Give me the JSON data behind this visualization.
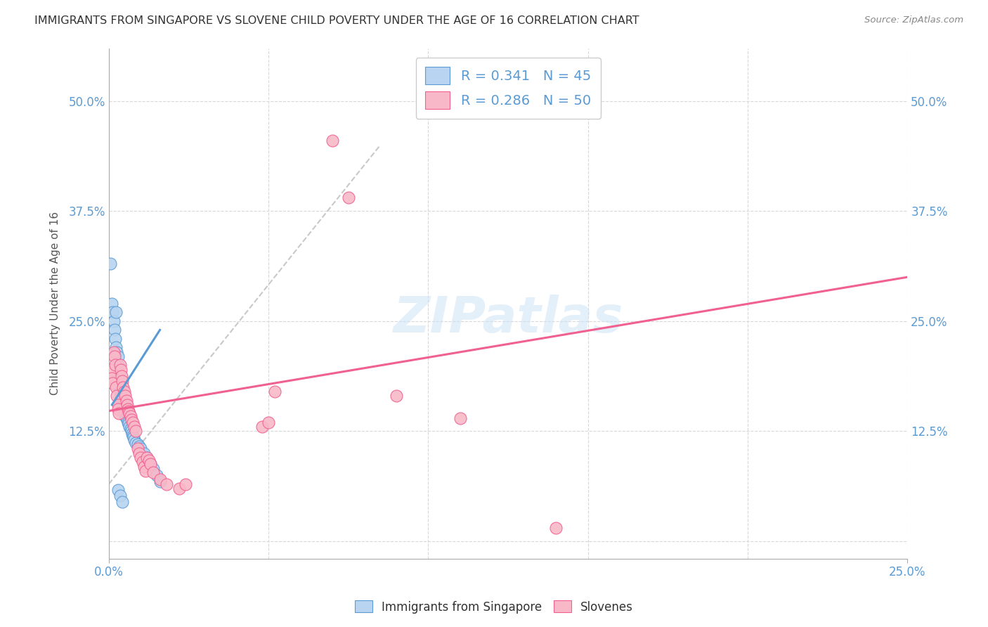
{
  "title": "IMMIGRANTS FROM SINGAPORE VS SLOVENE CHILD POVERTY UNDER THE AGE OF 16 CORRELATION CHART",
  "source": "Source: ZipAtlas.com",
  "ylabel": "Child Poverty Under the Age of 16",
  "xlim": [
    0.0,
    0.25
  ],
  "ylim": [
    -0.02,
    0.56
  ],
  "yticks": [
    0.0,
    0.125,
    0.25,
    0.375,
    0.5
  ],
  "ytick_labels_left": [
    "",
    "12.5%",
    "25.0%",
    "37.5%",
    "50.0%"
  ],
  "ytick_labels_right": [
    "",
    "12.5%",
    "25.0%",
    "37.5%",
    "50.0%"
  ],
  "xticks": [
    0.0,
    0.25
  ],
  "xtick_labels": [
    "0.0%",
    "25.0%"
  ],
  "legend_r1": "R = 0.341   N = 45",
  "legend_r2": "R = 0.286   N = 50",
  "color_blue_fill": "#b8d4f0",
  "color_pink_fill": "#f8b8c8",
  "color_blue_edge": "#5b9bd5",
  "color_pink_edge": "#f06090",
  "color_pink_line": "#f06090",
  "color_blue_line": "#5b9bd5",
  "color_gray_dashed": "#bbbbbb",
  "background_color": "#ffffff",
  "watermark_text": "ZIPatlas",
  "singapore_points": [
    [
      0.0005,
      0.315
    ],
    [
      0.001,
      0.27
    ],
    [
      0.0012,
      0.26
    ],
    [
      0.0015,
      0.25
    ],
    [
      0.0018,
      0.24
    ],
    [
      0.002,
      0.23
    ],
    [
      0.0022,
      0.22
    ],
    [
      0.0022,
      0.26
    ],
    [
      0.0025,
      0.215
    ],
    [
      0.0028,
      0.21
    ],
    [
      0.003,
      0.2
    ],
    [
      0.003,
      0.185
    ],
    [
      0.0032,
      0.175
    ],
    [
      0.0035,
      0.17
    ],
    [
      0.0038,
      0.165
    ],
    [
      0.004,
      0.16
    ],
    [
      0.0042,
      0.155
    ],
    [
      0.0045,
      0.15
    ],
    [
      0.0048,
      0.148
    ],
    [
      0.005,
      0.145
    ],
    [
      0.0052,
      0.142
    ],
    [
      0.0055,
      0.14
    ],
    [
      0.0058,
      0.138
    ],
    [
      0.006,
      0.135
    ],
    [
      0.0062,
      0.133
    ],
    [
      0.0065,
      0.13
    ],
    [
      0.0068,
      0.128
    ],
    [
      0.007,
      0.125
    ],
    [
      0.0072,
      0.122
    ],
    [
      0.0075,
      0.12
    ],
    [
      0.0078,
      0.118
    ],
    [
      0.008,
      0.115
    ],
    [
      0.0085,
      0.112
    ],
    [
      0.009,
      0.11
    ],
    [
      0.0095,
      0.108
    ],
    [
      0.01,
      0.105
    ],
    [
      0.011,
      0.1
    ],
    [
      0.012,
      0.095
    ],
    [
      0.013,
      0.088
    ],
    [
      0.014,
      0.082
    ],
    [
      0.015,
      0.075
    ],
    [
      0.016,
      0.068
    ],
    [
      0.0028,
      0.058
    ],
    [
      0.0035,
      0.052
    ],
    [
      0.0042,
      0.045
    ]
  ],
  "slovene_points": [
    [
      0.0008,
      0.195
    ],
    [
      0.001,
      0.185
    ],
    [
      0.0012,
      0.18
    ],
    [
      0.0015,
      0.215
    ],
    [
      0.0018,
      0.21
    ],
    [
      0.002,
      0.2
    ],
    [
      0.0022,
      0.175
    ],
    [
      0.0025,
      0.165
    ],
    [
      0.0028,
      0.155
    ],
    [
      0.003,
      0.15
    ],
    [
      0.0032,
      0.145
    ],
    [
      0.0035,
      0.2
    ],
    [
      0.0038,
      0.195
    ],
    [
      0.004,
      0.188
    ],
    [
      0.0042,
      0.182
    ],
    [
      0.0045,
      0.175
    ],
    [
      0.0048,
      0.17
    ],
    [
      0.005,
      0.165
    ],
    [
      0.0055,
      0.16
    ],
    [
      0.0058,
      0.155
    ],
    [
      0.006,
      0.15
    ],
    [
      0.0062,
      0.148
    ],
    [
      0.0065,
      0.145
    ],
    [
      0.0068,
      0.142
    ],
    [
      0.007,
      0.138
    ],
    [
      0.0075,
      0.135
    ],
    [
      0.008,
      0.13
    ],
    [
      0.0085,
      0.125
    ],
    [
      0.009,
      0.105
    ],
    [
      0.0095,
      0.1
    ],
    [
      0.01,
      0.095
    ],
    [
      0.0105,
      0.09
    ],
    [
      0.011,
      0.085
    ],
    [
      0.0115,
      0.08
    ],
    [
      0.012,
      0.095
    ],
    [
      0.0125,
      0.092
    ],
    [
      0.013,
      0.088
    ],
    [
      0.014,
      0.078
    ],
    [
      0.016,
      0.07
    ],
    [
      0.018,
      0.065
    ],
    [
      0.022,
      0.06
    ],
    [
      0.024,
      0.065
    ],
    [
      0.048,
      0.13
    ],
    [
      0.05,
      0.135
    ],
    [
      0.052,
      0.17
    ],
    [
      0.075,
      0.39
    ],
    [
      0.09,
      0.165
    ],
    [
      0.11,
      0.14
    ],
    [
      0.07,
      0.455
    ],
    [
      0.14,
      0.015
    ]
  ],
  "singapore_trend_x": [
    0.001,
    0.016
  ],
  "singapore_trend_y": [
    0.155,
    0.24
  ],
  "slovene_trend_x": [
    0.0,
    0.25
  ],
  "slovene_trend_y": [
    0.148,
    0.3
  ],
  "dashed_trend_x": [
    0.0,
    0.085
  ],
  "dashed_trend_y": [
    0.065,
    0.45
  ]
}
